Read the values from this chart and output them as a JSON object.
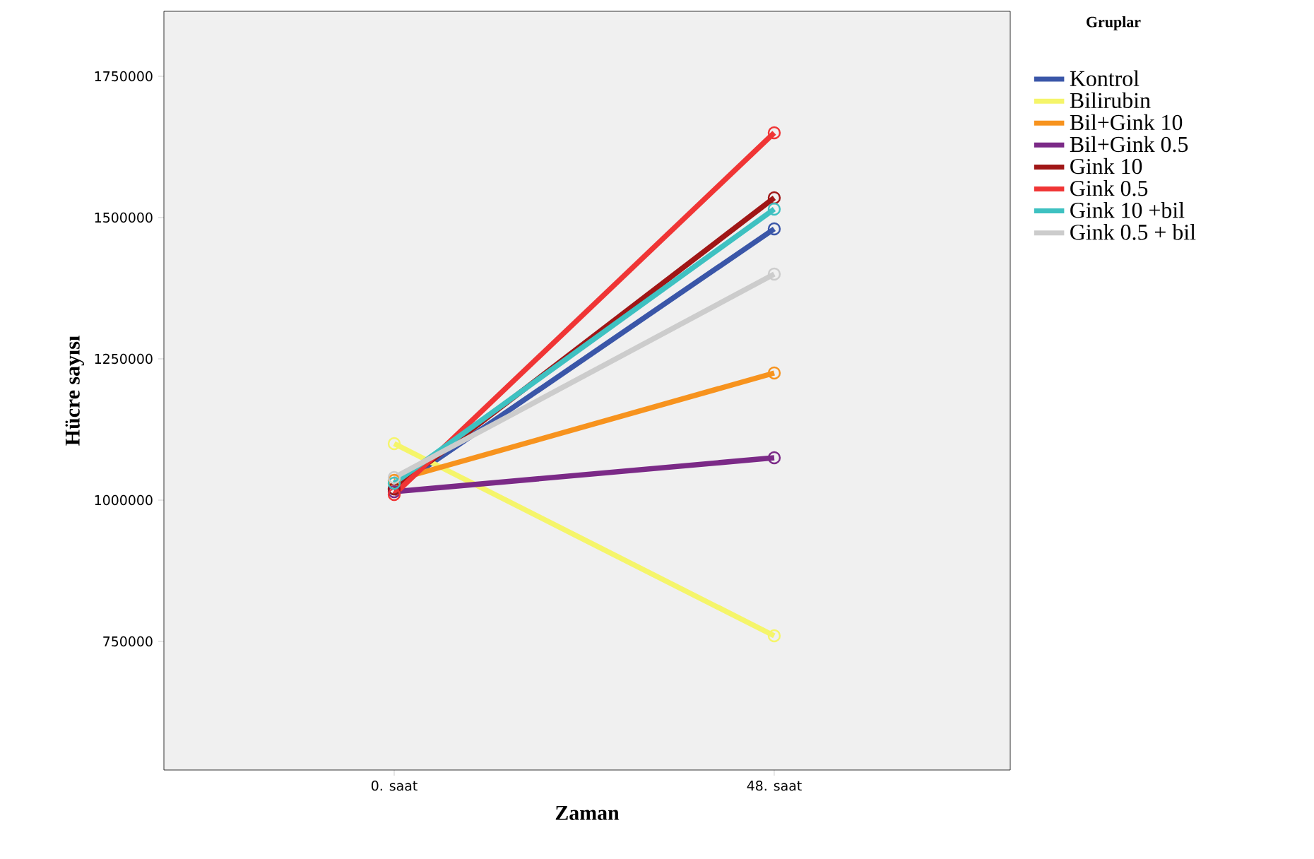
{
  "chart_data": {
    "type": "line",
    "xlabel": "Zaman",
    "ylabel": "Hücre sayısı",
    "legend_title": "Gruplar",
    "categories": [
      "0. saat",
      "48. saat"
    ],
    "series": [
      {
        "name": "Kontrol",
        "color": "#3a56a8",
        "values": [
          1020000,
          1480000
        ]
      },
      {
        "name": "Bilirubin",
        "color": "#f5f56a",
        "values": [
          1100000,
          760000
        ]
      },
      {
        "name": "Bil+Gink 10",
        "color": "#f7931e",
        "values": [
          1035000,
          1225000
        ]
      },
      {
        "name": "Bil+Gink 0.5",
        "color": "#7b2a87",
        "values": [
          1015000,
          1075000
        ]
      },
      {
        "name": "Gink 10",
        "color": "#a01616",
        "values": [
          1020000,
          1535000
        ]
      },
      {
        "name": "Gink 0.5",
        "color": "#f03535",
        "values": [
          1010000,
          1650000
        ]
      },
      {
        "name": "Gink 10 +bil",
        "color": "#3ec1c1",
        "values": [
          1030000,
          1515000
        ]
      },
      {
        "name": "Gink 0.5 + bil",
        "color": "#cccccc",
        "values": [
          1040000,
          1400000
        ]
      }
    ],
    "ylim": [
      522500,
      1865000
    ],
    "yticks": [
      750000,
      1000000,
      1250000,
      1500000,
      1750000
    ],
    "legend": "right",
    "marker": "circle",
    "line_style": "solid",
    "grid": false
  }
}
